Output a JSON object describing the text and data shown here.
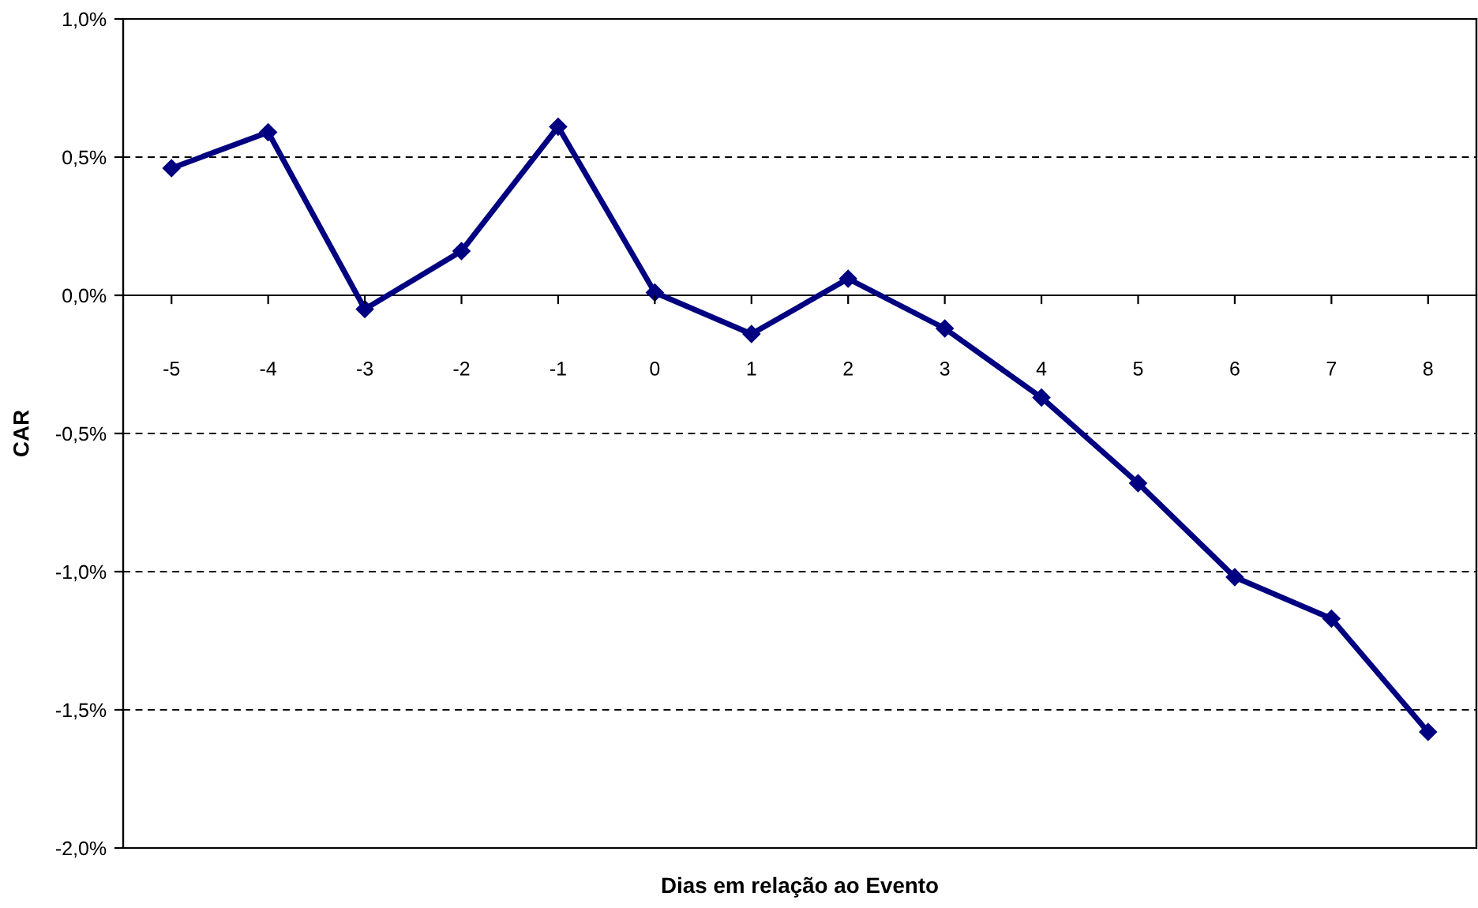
{
  "chart_data": {
    "type": "line",
    "xlabel": "Dias em relação ao Evento",
    "ylabel": "CAR",
    "categories": [
      "-5",
      "-4",
      "-3",
      "-2",
      "-1",
      "0",
      "1",
      "2",
      "3",
      "4",
      "5",
      "6",
      "7",
      "8"
    ],
    "series": [
      {
        "color": "#000080",
        "values": [
          0.46,
          0.59,
          -0.05,
          0.16,
          0.61,
          0.01,
          -0.14,
          0.06,
          -0.12,
          -0.37,
          -0.68,
          -1.02,
          -1.17,
          -1.58
        ]
      }
    ],
    "ylim": [
      -2.0,
      1.0
    ],
    "yticks": [
      {
        "value": -2.0,
        "label": "-2,0%"
      },
      {
        "value": -1.5,
        "label": "-1,5%"
      },
      {
        "value": -1.0,
        "label": "-1,0%"
      },
      {
        "value": -0.5,
        "label": "-0,5%"
      },
      {
        "value": 0.0,
        "label": "0,0%"
      },
      {
        "value": 0.5,
        "label": "0,5%"
      },
      {
        "value": 1.0,
        "label": "1,0%"
      }
    ],
    "grid": "y",
    "marker": "diamond",
    "line_style": "solid",
    "legend": false
  }
}
